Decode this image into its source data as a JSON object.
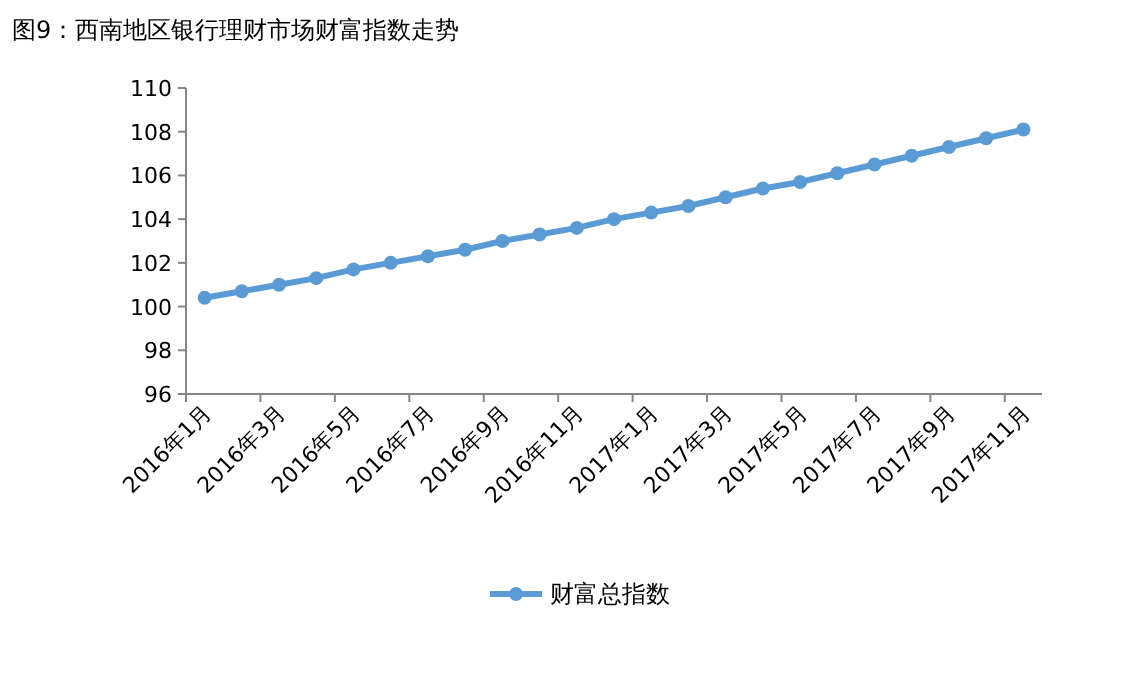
{
  "chart_data": {
    "type": "line",
    "title": "图9：西南地区银行理财市场财富指数走势",
    "categories": [
      "2016年1月",
      null,
      "2016年3月",
      null,
      "2016年5月",
      null,
      "2016年7月",
      null,
      "2016年9月",
      null,
      "2016年11月",
      null,
      "2017年1月",
      null,
      "2017年3月",
      null,
      "2017年5月",
      null,
      "2017年7月",
      null,
      "2017年9月",
      null,
      "2017年11月"
    ],
    "series": [
      {
        "name": "财富总指数",
        "color": "#5b9bd5",
        "values": [
          100.4,
          100.7,
          101.0,
          101.3,
          101.7,
          102.0,
          102.3,
          102.6,
          103.0,
          103.3,
          103.6,
          104.0,
          104.3,
          104.6,
          105.0,
          105.4,
          105.7,
          106.1,
          106.5,
          106.9,
          107.3,
          107.7,
          108.1
        ]
      }
    ],
    "ylim": [
      96,
      110
    ],
    "yticks": [
      96,
      98,
      100,
      102,
      104,
      106,
      108,
      110
    ],
    "marker": "circle",
    "legend": "bottom",
    "grid": false
  }
}
